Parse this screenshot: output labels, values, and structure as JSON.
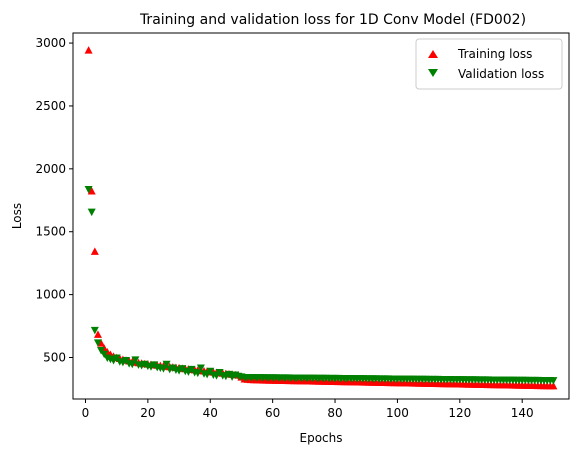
{
  "chart_data": {
    "type": "scatter",
    "title": "Training and validation loss for 1D Conv Model (FD002)",
    "xlabel": "Epochs",
    "ylabel": "Loss",
    "xlim": [
      -4,
      155
    ],
    "ylim": [
      170,
      3080
    ],
    "xticks": [
      0,
      20,
      40,
      60,
      80,
      100,
      120,
      140
    ],
    "yticks": [
      500,
      1000,
      1500,
      2000,
      2500,
      3000
    ],
    "grid": false,
    "legend_position": "top-right",
    "series": [
      {
        "name": "Training loss",
        "marker": "triangle-up",
        "color": "#ff0000",
        "x": [
          1,
          2,
          3,
          4,
          5,
          6,
          7,
          8,
          9,
          10,
          11,
          12,
          13,
          14,
          15,
          16,
          17,
          18,
          19,
          20,
          21,
          22,
          23,
          24,
          25,
          26,
          27,
          28,
          29,
          30,
          31,
          32,
          33,
          34,
          35,
          36,
          37,
          38,
          39,
          40,
          41,
          42,
          43,
          44,
          45,
          46,
          47,
          48,
          49,
          50,
          51,
          52,
          53,
          54,
          55,
          56,
          57,
          58,
          59,
          60,
          61,
          62,
          63,
          64,
          65,
          66,
          67,
          68,
          69,
          70,
          71,
          72,
          73,
          74,
          75,
          76,
          77,
          78,
          79,
          80,
          81,
          82,
          83,
          84,
          85,
          86,
          87,
          88,
          89,
          90,
          91,
          92,
          93,
          94,
          95,
          96,
          97,
          98,
          99,
          100,
          101,
          102,
          103,
          104,
          105,
          106,
          107,
          108,
          109,
          110,
          111,
          112,
          113,
          114,
          115,
          116,
          117,
          118,
          119,
          120,
          121,
          122,
          123,
          124,
          125,
          126,
          127,
          128,
          129,
          130,
          131,
          132,
          133,
          134,
          135,
          136,
          137,
          138,
          139,
          140,
          141,
          142,
          143,
          144,
          145,
          146,
          147,
          148,
          149,
          150
        ],
        "y": [
          2940,
          1820,
          1340,
          680,
          610,
          570,
          540,
          520,
          505,
          495,
          488,
          480,
          474,
          468,
          463,
          458,
          454,
          450,
          446,
          443,
          440,
          437,
          434,
          431,
          428,
          425,
          422,
          419,
          416,
          413,
          410,
          407,
          404,
          401,
          398,
          395,
          392,
          389,
          386,
          383,
          380,
          377,
          374,
          371,
          368,
          365,
          362,
          359,
          356,
          340,
          325,
          322,
          320,
          319,
          318,
          317,
          316,
          316,
          315,
          315,
          314,
          314,
          313,
          313,
          312,
          312,
          311,
          311,
          310,
          310,
          309,
          309,
          308,
          308,
          307,
          307,
          306,
          306,
          305,
          305,
          304,
          304,
          303,
          303,
          302,
          302,
          301,
          301,
          300,
          300,
          299,
          299,
          298,
          298,
          297,
          297,
          296,
          296,
          295,
          295,
          294,
          294,
          293,
          293,
          292,
          292,
          291,
          291,
          290,
          290,
          289,
          289,
          288,
          288,
          287,
          287,
          286,
          286,
          285,
          285,
          284,
          284,
          283,
          283,
          282,
          282,
          281,
          281,
          280,
          280,
          279,
          279,
          278,
          278,
          277,
          277,
          276,
          276,
          275,
          275,
          274,
          274,
          273,
          273,
          272,
          272,
          271,
          271,
          270,
          270
        ]
      },
      {
        "name": "Validation loss",
        "marker": "triangle-down",
        "color": "#008000",
        "x": [
          1,
          2,
          3,
          4,
          5,
          6,
          7,
          8,
          9,
          10,
          11,
          12,
          13,
          14,
          15,
          16,
          17,
          18,
          19,
          20,
          21,
          22,
          23,
          24,
          25,
          26,
          27,
          28,
          29,
          30,
          31,
          32,
          33,
          34,
          35,
          36,
          37,
          38,
          39,
          40,
          41,
          42,
          43,
          44,
          45,
          46,
          47,
          48,
          49,
          50,
          51,
          52,
          53,
          54,
          55,
          56,
          57,
          58,
          59,
          60,
          61,
          62,
          63,
          64,
          65,
          66,
          67,
          68,
          69,
          70,
          71,
          72,
          73,
          74,
          75,
          76,
          77,
          78,
          79,
          80,
          81,
          82,
          83,
          84,
          85,
          86,
          87,
          88,
          89,
          90,
          91,
          92,
          93,
          94,
          95,
          96,
          97,
          98,
          99,
          100,
          101,
          102,
          103,
          104,
          105,
          106,
          107,
          108,
          109,
          110,
          111,
          112,
          113,
          114,
          115,
          116,
          117,
          118,
          119,
          120,
          121,
          122,
          123,
          124,
          125,
          126,
          127,
          128,
          129,
          130,
          131,
          132,
          133,
          134,
          135,
          136,
          137,
          138,
          139,
          140,
          141,
          142,
          143,
          144,
          145,
          146,
          147,
          148,
          149,
          150
        ],
        "y": [
          1840,
          1660,
          720,
          620,
          560,
          530,
          500,
          490,
          480,
          500,
          470,
          465,
          480,
          455,
          450,
          485,
          445,
          440,
          450,
          435,
          430,
          445,
          425,
          420,
          415,
          450,
          410,
          420,
          405,
          400,
          415,
          395,
          390,
          410,
          385,
          380,
          420,
          375,
          370,
          395,
          365,
          360,
          385,
          360,
          355,
          370,
          350,
          365,
          355,
          350,
          345,
          345,
          345,
          345,
          344,
          344,
          344,
          343,
          343,
          343,
          343,
          342,
          342,
          342,
          342,
          341,
          341,
          341,
          341,
          340,
          340,
          340,
          340,
          339,
          339,
          339,
          339,
          338,
          338,
          338,
          338,
          337,
          337,
          337,
          337,
          336,
          336,
          336,
          336,
          335,
          335,
          335,
          335,
          334,
          334,
          334,
          334,
          333,
          333,
          333,
          333,
          332,
          332,
          332,
          332,
          331,
          331,
          331,
          331,
          330,
          330,
          330,
          330,
          329,
          329,
          329,
          329,
          328,
          328,
          328,
          328,
          327,
          327,
          327,
          327,
          326,
          326,
          326,
          326,
          325,
          325,
          325,
          325,
          324,
          324,
          324,
          324,
          323,
          323,
          323,
          323,
          322,
          322,
          322,
          322,
          321,
          321,
          321,
          321,
          320
        ]
      }
    ]
  }
}
